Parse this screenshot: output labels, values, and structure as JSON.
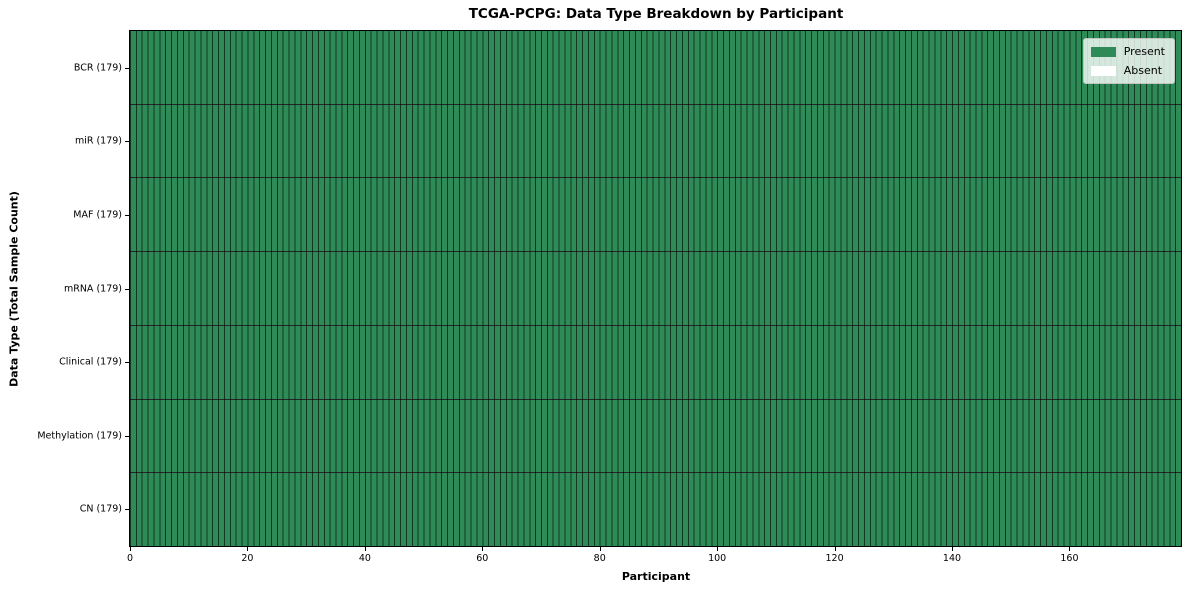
{
  "chart_data": {
    "type": "heatmap",
    "title": "TCGA-PCPG: Data Type Breakdown by Participant",
    "xlabel": "Participant",
    "ylabel": "Data Type (Total Sample Count)",
    "n_participants": 179,
    "xlim": [
      0,
      179
    ],
    "x_ticks": [
      0,
      20,
      40,
      60,
      80,
      100,
      120,
      140,
      160
    ],
    "rows": [
      {
        "label": "BCR (179)",
        "present": 179,
        "absent": 0
      },
      {
        "label": "miR (179)",
        "present": 179,
        "absent": 0
      },
      {
        "label": "MAF (179)",
        "present": 179,
        "absent": 0
      },
      {
        "label": "mRNA (179)",
        "present": 179,
        "absent": 0
      },
      {
        "label": "Clinical (179)",
        "present": 179,
        "absent": 0
      },
      {
        "label": "Methylation (179)",
        "present": 179,
        "absent": 0
      },
      {
        "label": "CN (179)",
        "present": 179,
        "absent": 0
      }
    ],
    "legend": [
      {
        "label": "Present",
        "color": "#2e8b57"
      },
      {
        "label": "Absent",
        "color": "#ffffff"
      }
    ],
    "legend_position": "upper right",
    "colors": {
      "present": "#2e8b57",
      "absent": "#ffffff",
      "cell_edge": "rgba(0,0,0,0.6)",
      "row_separator": "rgba(0,0,0,0.85)"
    }
  }
}
